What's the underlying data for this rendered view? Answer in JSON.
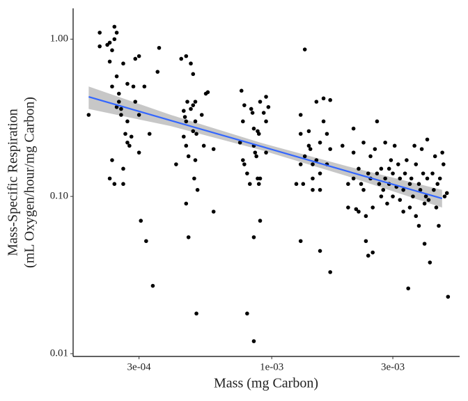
{
  "chart_data": {
    "type": "scatter",
    "x_label": "Mass (mg Carbon)",
    "y_label": [
      "Mass-Specific Respiration",
      "(mL Oxygen/hour/mg Carbon)"
    ],
    "log_x": true,
    "log_y": true,
    "xlim": [
      0.000165,
      0.0055
    ],
    "ylim": [
      0.0096,
      1.57
    ],
    "xticks": [
      {
        "value": 0.0003,
        "label": "3e-04"
      },
      {
        "value": 0.001,
        "label": "1e-03"
      },
      {
        "value": 0.003,
        "label": "3e-03"
      }
    ],
    "yticks": [
      {
        "value": 0.01,
        "label": "0.01"
      },
      {
        "value": 0.1,
        "label": "0.10"
      },
      {
        "value": 1,
        "label": "1.00"
      }
    ],
    "series": [
      {
        "color": "#000000",
        "x": [
          0.00019,
          0.00021,
          0.00021,
          0.000225,
          0.00023,
          0.000235,
          0.00023,
          0.00024,
          0.000245,
          0.00024,
          0.000235,
          0.000245,
          0.00025,
          0.00025,
          0.000255,
          0.000245,
          0.000235,
          0.00023,
          0.00024,
          0.00026,
          0.00026,
          0.000265,
          0.00027,
          0.000275,
          0.00028,
          0.00027,
          0.000285,
          0.00029,
          0.0003,
          0.00029,
          0.0003,
          0.0003,
          0.000305,
          0.000315,
          0.00032,
          0.00033,
          0.00034,
          0.000355,
          0.00036,
          0.000255,
          0.00026,
          0.00027,
          0.00042,
          0.00044,
          0.00046,
          0.00045,
          0.000455,
          0.00046,
          0.000465,
          0.00045,
          0.00046,
          0.00047,
          0.00046,
          0.00047,
          0.00048,
          0.00049,
          0.00048,
          0.00049,
          0.0005,
          0.0005,
          0.00049,
          0.000505,
          0.000495,
          0.0005,
          0.000505,
          0.00053,
          0.00055,
          0.00056,
          0.00054,
          0.00059,
          0.00059,
          0.00051,
          0.00076,
          0.00078,
          0.00077,
          0.00075,
          0.00077,
          0.00078,
          0.0008,
          0.0008,
          0.00083,
          0.00084,
          0.00085,
          0.00085,
          0.00086,
          0.00085,
          0.00085,
          0.00088,
          0.00089,
          0.00087,
          0.00089,
          0.0009,
          0.0009,
          0.00093,
          0.00095,
          0.00097,
          0.00095,
          0.00095,
          0.0009,
          0.00088,
          0.00082,
          0.00125,
          0.0013,
          0.0013,
          0.0013,
          0.00133,
          0.0013,
          0.00135,
          0.0014,
          0.0014,
          0.00142,
          0.00145,
          0.00145,
          0.00145,
          0.0015,
          0.0015,
          0.00155,
          0.00155,
          0.00155,
          0.0016,
          0.0016,
          0.00165,
          0.00165,
          0.0017,
          0.0017,
          0.0017,
          0.00155,
          0.00135,
          0.0019,
          0.002,
          0.002,
          0.0021,
          0.0021,
          0.0021,
          0.00215,
          0.0022,
          0.0022,
          0.00225,
          0.0023,
          0.0023,
          0.00235,
          0.00235,
          0.0024,
          0.0024,
          0.00245,
          0.00245,
          0.0025,
          0.0025,
          0.00255,
          0.0026,
          0.0026,
          0.00265,
          0.0027,
          0.0027,
          0.00275,
          0.0028,
          0.0028,
          0.00285,
          0.0029,
          0.0029,
          0.00295,
          0.003,
          0.003,
          0.00305,
          0.0031,
          0.00315,
          0.0032,
          0.0032,
          0.0033,
          0.0033,
          0.00335,
          0.0034,
          0.00345,
          0.0035,
          0.0035,
          0.00355,
          0.0036,
          0.00365,
          0.0037,
          0.0037,
          0.0038,
          0.0038,
          0.00385,
          0.0039,
          0.00395,
          0.004,
          0.004,
          0.00405,
          0.0041,
          0.0041,
          0.00415,
          0.0042,
          0.0043,
          0.00435,
          0.0044,
          0.00445,
          0.0045,
          0.00455,
          0.0046,
          0.0047,
          0.00475,
          0.0048,
          0.0049,
          0.00495
        ],
        "y": [
          0.33,
          1.1,
          0.9,
          0.92,
          0.95,
          0.85,
          0.72,
          1.2,
          1.1,
          1.0,
          0.5,
          0.58,
          0.45,
          0.4,
          0.36,
          0.37,
          0.17,
          0.13,
          0.12,
          0.12,
          0.15,
          0.25,
          0.22,
          0.21,
          0.24,
          0.52,
          0.5,
          0.75,
          0.78,
          0.4,
          0.33,
          0.19,
          0.07,
          0.5,
          0.052,
          0.25,
          0.027,
          0.62,
          0.88,
          0.33,
          0.7,
          0.3,
          0.16,
          0.75,
          0.78,
          0.35,
          0.32,
          0.3,
          0.4,
          0.24,
          0.21,
          0.18,
          0.09,
          0.055,
          0.7,
          0.6,
          0.36,
          0.38,
          0.4,
          0.3,
          0.26,
          0.25,
          0.13,
          0.17,
          0.018,
          0.33,
          0.45,
          0.46,
          0.21,
          0.08,
          0.2,
          0.11,
          0.47,
          0.38,
          0.3,
          0.22,
          0.17,
          0.16,
          0.14,
          0.018,
          0.36,
          0.34,
          0.27,
          0.21,
          0.19,
          0.055,
          0.012,
          0.26,
          0.25,
          0.18,
          0.12,
          0.07,
          0.13,
          0.34,
          0.43,
          0.37,
          0.3,
          0.19,
          0.4,
          0.13,
          0.12,
          0.12,
          0.33,
          0.25,
          0.16,
          0.12,
          0.052,
          0.86,
          0.26,
          0.21,
          0.2,
          0.16,
          0.13,
          0.11,
          0.4,
          0.17,
          0.22,
          0.14,
          0.11,
          0.42,
          0.3,
          0.25,
          0.16,
          0.41,
          0.2,
          0.033,
          0.045,
          0.18,
          0.21,
          0.12,
          0.085,
          0.27,
          0.19,
          0.13,
          0.083,
          0.08,
          0.15,
          0.12,
          0.22,
          0.11,
          0.075,
          0.052,
          0.042,
          0.14,
          0.13,
          0.18,
          0.085,
          0.044,
          0.2,
          0.3,
          0.14,
          0.12,
          0.15,
          0.1,
          0.11,
          0.22,
          0.13,
          0.09,
          0.15,
          0.12,
          0.17,
          0.1,
          0.14,
          0.21,
          0.115,
          0.16,
          0.13,
          0.095,
          0.11,
          0.08,
          0.14,
          0.17,
          0.026,
          0.12,
          0.085,
          0.13,
          0.1,
          0.21,
          0.16,
          0.075,
          0.12,
          0.065,
          0.11,
          0.2,
          0.14,
          0.09,
          0.05,
          0.1,
          0.23,
          0.13,
          0.095,
          0.038,
          0.14,
          0.11,
          0.18,
          0.085,
          0.12,
          0.065,
          0.13,
          0.19,
          0.16,
          0.1,
          0.105,
          0.023
        ]
      }
    ],
    "fit": {
      "color": "#3366ff",
      "band_color": "#999999",
      "x": [
        0.00019,
        0.0004,
        0.0009,
        0.002,
        0.00469
      ],
      "y": [
        0.43,
        0.304,
        0.209,
        0.144,
        0.097
      ],
      "lower": [
        0.36,
        0.28,
        0.198,
        0.134,
        0.085
      ],
      "upper": [
        0.5,
        0.33,
        0.22,
        0.155,
        0.11
      ]
    }
  }
}
